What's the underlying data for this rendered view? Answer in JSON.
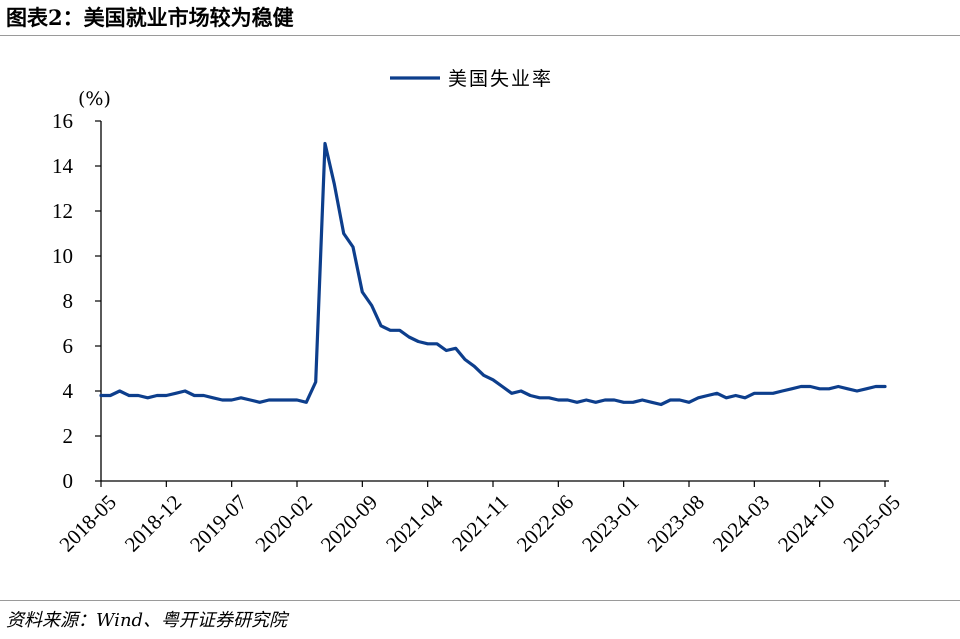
{
  "figure": {
    "title": "图表2：美国就业市场较为稳健",
    "source": "资料来源：Wind、粤开证券研究院"
  },
  "chart_data": {
    "type": "line",
    "title": "",
    "xlabel": "",
    "ylabel": "(%)",
    "ylim": [
      0,
      16
    ],
    "yticks": [
      0,
      2,
      4,
      6,
      8,
      10,
      12,
      14,
      16
    ],
    "grid": false,
    "legend_position": "top-center",
    "x_ticks": [
      "2018-05",
      "2018-12",
      "2019-07",
      "2020-02",
      "2020-09",
      "2021-04",
      "2021-11",
      "2022-06",
      "2023-01",
      "2023-08",
      "2024-03",
      "2024-10",
      "2025-05"
    ],
    "x": [
      "2018-05",
      "2018-06",
      "2018-07",
      "2018-08",
      "2018-09",
      "2018-10",
      "2018-11",
      "2018-12",
      "2019-01",
      "2019-02",
      "2019-03",
      "2019-04",
      "2019-05",
      "2019-06",
      "2019-07",
      "2019-08",
      "2019-09",
      "2019-10",
      "2019-11",
      "2019-12",
      "2020-01",
      "2020-02",
      "2020-03",
      "2020-04",
      "2020-05",
      "2020-06",
      "2020-07",
      "2020-08",
      "2020-09",
      "2020-10",
      "2020-11",
      "2020-12",
      "2021-01",
      "2021-02",
      "2021-03",
      "2021-04",
      "2021-05",
      "2021-06",
      "2021-07",
      "2021-08",
      "2021-09",
      "2021-10",
      "2021-11",
      "2021-12",
      "2022-01",
      "2022-02",
      "2022-03",
      "2022-04",
      "2022-05",
      "2022-06",
      "2022-07",
      "2022-08",
      "2022-09",
      "2022-10",
      "2022-11",
      "2022-12",
      "2023-01",
      "2023-02",
      "2023-03",
      "2023-04",
      "2023-05",
      "2023-06",
      "2023-07",
      "2023-08",
      "2023-09",
      "2023-10",
      "2023-11",
      "2023-12",
      "2024-01",
      "2024-02",
      "2024-03",
      "2024-04",
      "2024-05",
      "2024-06",
      "2024-07",
      "2024-08",
      "2024-09",
      "2024-10",
      "2024-11",
      "2024-12",
      "2025-01",
      "2025-02",
      "2025-03",
      "2025-04",
      "2025-05"
    ],
    "series": [
      {
        "name": "美国失业率",
        "color": "#0d3e8c",
        "values": [
          3.8,
          3.8,
          4.0,
          3.8,
          3.8,
          3.7,
          3.8,
          3.8,
          3.9,
          4.0,
          3.8,
          3.8,
          3.7,
          3.6,
          3.6,
          3.7,
          3.6,
          3.5,
          3.6,
          3.6,
          3.6,
          3.6,
          3.5,
          4.4,
          15.0,
          13.2,
          11.0,
          10.4,
          8.4,
          7.8,
          6.9,
          6.7,
          6.7,
          6.4,
          6.2,
          6.1,
          6.1,
          5.8,
          5.9,
          5.4,
          5.1,
          4.7,
          4.5,
          4.2,
          3.9,
          4.0,
          3.8,
          3.7,
          3.7,
          3.6,
          3.6,
          3.5,
          3.6,
          3.5,
          3.6,
          3.6,
          3.5,
          3.5,
          3.6,
          3.5,
          3.4,
          3.6,
          3.6,
          3.5,
          3.7,
          3.8,
          3.9,
          3.7,
          3.8,
          3.7,
          3.9,
          3.9,
          3.9,
          4.0,
          4.1,
          4.2,
          4.2,
          4.1,
          4.1,
          4.2,
          4.1,
          4.0,
          4.1,
          4.2,
          4.2
        ]
      }
    ]
  }
}
